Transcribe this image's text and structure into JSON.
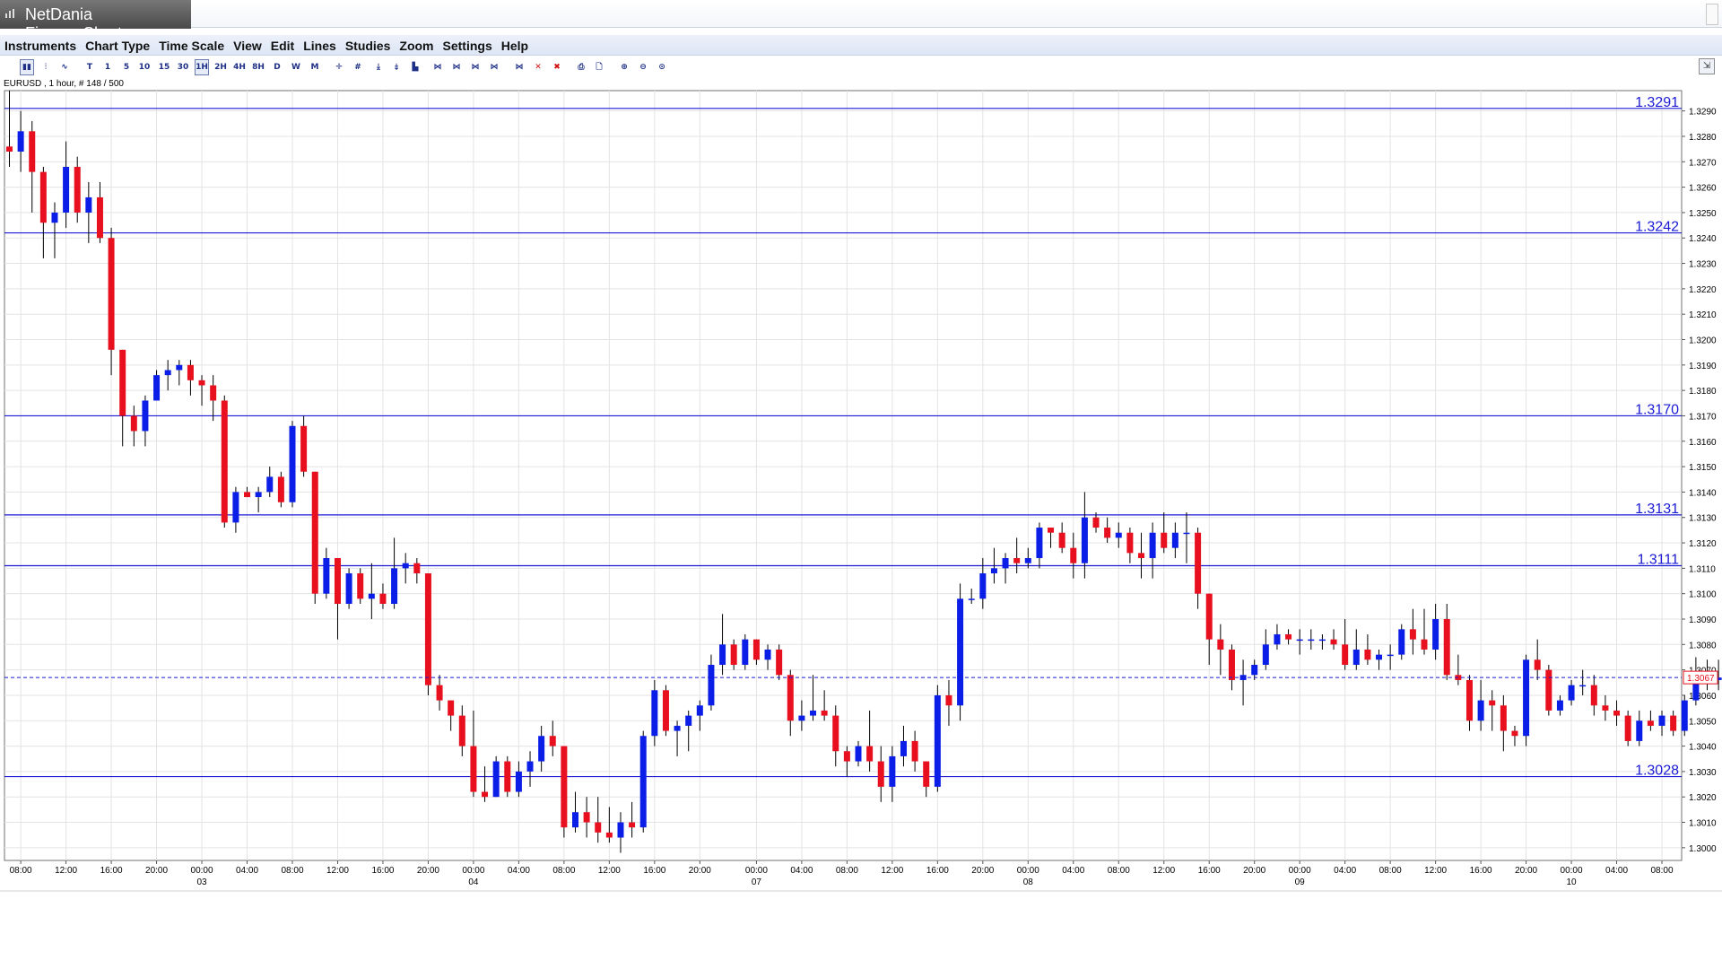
{
  "app": {
    "title": "NetDania FinanceChart"
  },
  "menu": [
    "Instruments",
    "Chart Type",
    "Time Scale",
    "View",
    "Edit",
    "Lines",
    "Studies",
    "Zoom",
    "Settings",
    "Help"
  ],
  "toolbar": {
    "buttons": [
      {
        "name": "chart-candle-icon",
        "label": "▮▮",
        "active": true
      },
      {
        "name": "chart-bar-icon",
        "label": "⫶"
      },
      {
        "name": "chart-line-icon",
        "label": "∿"
      },
      {
        "name": "timescale-tick-button",
        "label": "T"
      },
      {
        "name": "timescale-1-button",
        "label": "1"
      },
      {
        "name": "timescale-5-button",
        "label": "5"
      },
      {
        "name": "timescale-10-button",
        "label": "10"
      },
      {
        "name": "timescale-15-button",
        "label": "15"
      },
      {
        "name": "timescale-30-button",
        "label": "30"
      },
      {
        "name": "timescale-1h-button",
        "label": "1H",
        "active": true
      },
      {
        "name": "timescale-2h-button",
        "label": "2H"
      },
      {
        "name": "timescale-4h-button",
        "label": "4H"
      },
      {
        "name": "timescale-8h-button",
        "label": "8H"
      },
      {
        "name": "timescale-d-button",
        "label": "D"
      },
      {
        "name": "timescale-w-button",
        "label": "W"
      },
      {
        "name": "timescale-m-button",
        "label": "M"
      },
      {
        "name": "crosshair-icon",
        "label": "✛"
      },
      {
        "name": "grid-icon",
        "label": "#"
      },
      {
        "name": "draw-line-icon",
        "label": "⤓"
      },
      {
        "name": "draw-trend-icon",
        "label": "⤈"
      },
      {
        "name": "volume-icon",
        "label": "▙"
      },
      {
        "name": "fib-icon",
        "label": "⋈"
      },
      {
        "name": "fib2-icon",
        "label": "⋈"
      },
      {
        "name": "fib3-icon",
        "label": "⋈"
      },
      {
        "name": "fib4-icon",
        "label": "⋈"
      },
      {
        "name": "edit-line-icon",
        "label": "⋈"
      },
      {
        "name": "delete-icon",
        "label": "✕"
      },
      {
        "name": "delete-all-icon",
        "label": "✖"
      },
      {
        "name": "print-icon",
        "label": "⎙"
      },
      {
        "name": "print-preview-icon",
        "label": "🗋"
      },
      {
        "name": "zoom-in-icon",
        "label": "⊕"
      },
      {
        "name": "zoom-out-icon",
        "label": "⊖"
      },
      {
        "name": "zoom-reset-icon",
        "label": "⊙"
      }
    ],
    "right_label": "⇲"
  },
  "instrument_label": "EURUSD , 1 hour, # 148 / 500",
  "colors": {
    "up": "#0a1ee8",
    "down": "#e8101e",
    "hline": "#1a1ad4",
    "grid": "#e3e3e3"
  },
  "chart_data": {
    "type": "candlestick",
    "ylim": [
      1.2995,
      1.3298
    ],
    "yticks": [
      1.3,
      1.301,
      1.302,
      1.303,
      1.304,
      1.305,
      1.306,
      1.307,
      1.308,
      1.309,
      1.31,
      1.311,
      1.312,
      1.313,
      1.314,
      1.315,
      1.316,
      1.317,
      1.318,
      1.319,
      1.32,
      1.321,
      1.322,
      1.323,
      1.324,
      1.325,
      1.326,
      1.327,
      1.328,
      1.329
    ],
    "ytick_labels": [
      "1.3000",
      "1.3010",
      "1.3020",
      "1.3030",
      "1.3040",
      "1.3050",
      "1.3060",
      "1.3070",
      "1.3080",
      "1.3090",
      "1.3100",
      "1.3110",
      "1.3120",
      "1.3130",
      "1.3140",
      "1.3150",
      "1.3160",
      "1.3170",
      "1.3180",
      "1.3190",
      "1.3200",
      "1.3210",
      "1.3220",
      "1.3230",
      "1.3240",
      "1.3250",
      "1.3260",
      "1.3270",
      "1.3280",
      "1.3290"
    ],
    "hlines": [
      {
        "value": 1.3291,
        "label": "1.3291"
      },
      {
        "value": 1.3242,
        "label": "1.3242"
      },
      {
        "value": 1.317,
        "label": "1.3170"
      },
      {
        "value": 1.3131,
        "label": "1.3131"
      },
      {
        "value": 1.3111,
        "label": "1.3111"
      },
      {
        "value": 1.3028,
        "label": "1.3028"
      }
    ],
    "last_price": {
      "value": 1.3067,
      "label": "1.3067"
    },
    "xticks": [
      {
        "i": 1,
        "label": "08:00"
      },
      {
        "i": 5,
        "label": "12:00"
      },
      {
        "i": 9,
        "label": "16:00"
      },
      {
        "i": 13,
        "label": "20:00"
      },
      {
        "i": 17,
        "label": "00:00",
        "date": "03"
      },
      {
        "i": 21,
        "label": "04:00"
      },
      {
        "i": 25,
        "label": "08:00"
      },
      {
        "i": 29,
        "label": "12:00"
      },
      {
        "i": 33,
        "label": "16:00"
      },
      {
        "i": 37,
        "label": "20:00"
      },
      {
        "i": 41,
        "label": "00:00",
        "date": "04"
      },
      {
        "i": 45,
        "label": "04:00"
      },
      {
        "i": 49,
        "label": "08:00"
      },
      {
        "i": 53,
        "label": "12:00"
      },
      {
        "i": 57,
        "label": "16:00"
      },
      {
        "i": 61,
        "label": "20:00"
      },
      {
        "i": 66,
        "label": "00:00",
        "date": "07"
      },
      {
        "i": 70,
        "label": "04:00"
      },
      {
        "i": 74,
        "label": "08:00"
      },
      {
        "i": 78,
        "label": "12:00"
      },
      {
        "i": 82,
        "label": "16:00"
      },
      {
        "i": 86,
        "label": "20:00"
      },
      {
        "i": 90,
        "label": "00:00",
        "date": "08"
      },
      {
        "i": 94,
        "label": "04:00"
      },
      {
        "i": 98,
        "label": "08:00"
      },
      {
        "i": 102,
        "label": "12:00"
      },
      {
        "i": 106,
        "label": "16:00"
      },
      {
        "i": 110,
        "label": "20:00"
      },
      {
        "i": 114,
        "label": "00:00",
        "date": "09"
      },
      {
        "i": 118,
        "label": "04:00"
      },
      {
        "i": 122,
        "label": "08:00"
      },
      {
        "i": 126,
        "label": "12:00"
      },
      {
        "i": 130,
        "label": "16:00"
      },
      {
        "i": 134,
        "label": "20:00"
      },
      {
        "i": 138,
        "label": "00:00",
        "date": "10"
      },
      {
        "i": 142,
        "label": "04:00"
      },
      {
        "i": 146,
        "label": "08:00"
      }
    ],
    "candles": [
      [
        1.3276,
        1.3298,
        1.3268,
        1.3274
      ],
      [
        1.3274,
        1.329,
        1.3266,
        1.3282
      ],
      [
        1.3282,
        1.3286,
        1.325,
        1.3266
      ],
      [
        1.3266,
        1.3268,
        1.3232,
        1.3246
      ],
      [
        1.3246,
        1.3254,
        1.3232,
        1.325
      ],
      [
        1.325,
        1.3278,
        1.3244,
        1.3268
      ],
      [
        1.3268,
        1.3272,
        1.3246,
        1.325
      ],
      [
        1.325,
        1.3262,
        1.3238,
        1.3256
      ],
      [
        1.3256,
        1.3262,
        1.3238,
        1.324
      ],
      [
        1.324,
        1.3244,
        1.3186,
        1.3196
      ],
      [
        1.3196,
        1.3196,
        1.3158,
        1.317
      ],
      [
        1.317,
        1.3174,
        1.3158,
        1.3164
      ],
      [
        1.3164,
        1.3178,
        1.3158,
        1.3176
      ],
      [
        1.3176,
        1.3188,
        1.3176,
        1.3186
      ],
      [
        1.3186,
        1.3192,
        1.318,
        1.3188
      ],
      [
        1.3188,
        1.3192,
        1.3182,
        1.319
      ],
      [
        1.319,
        1.3192,
        1.3178,
        1.3184
      ],
      [
        1.3184,
        1.3186,
        1.3174,
        1.3182
      ],
      [
        1.3182,
        1.3186,
        1.3168,
        1.3176
      ],
      [
        1.3176,
        1.3178,
        1.3126,
        1.3128
      ],
      [
        1.3128,
        1.3142,
        1.3124,
        1.314
      ],
      [
        1.314,
        1.3142,
        1.3138,
        1.3138
      ],
      [
        1.3138,
        1.3142,
        1.3132,
        1.314
      ],
      [
        1.314,
        1.315,
        1.3138,
        1.3146
      ],
      [
        1.3146,
        1.3148,
        1.3134,
        1.3136
      ],
      [
        1.3136,
        1.3168,
        1.3134,
        1.3166
      ],
      [
        1.3166,
        1.317,
        1.3146,
        1.3148
      ],
      [
        1.3148,
        1.3148,
        1.3096,
        1.31
      ],
      [
        1.31,
        1.3118,
        1.3098,
        1.3114
      ],
      [
        1.3114,
        1.3114,
        1.3082,
        1.3096
      ],
      [
        1.3096,
        1.311,
        1.3094,
        1.3108
      ],
      [
        1.3108,
        1.311,
        1.3096,
        1.3098
      ],
      [
        1.3098,
        1.3112,
        1.309,
        1.31
      ],
      [
        1.31,
        1.3104,
        1.3094,
        1.3096
      ],
      [
        1.3096,
        1.3122,
        1.3094,
        1.311
      ],
      [
        1.311,
        1.3116,
        1.3104,
        1.3112
      ],
      [
        1.3112,
        1.3114,
        1.3104,
        1.3108
      ],
      [
        1.3108,
        1.3108,
        1.306,
        1.3064
      ],
      [
        1.3064,
        1.3068,
        1.3054,
        1.3058
      ],
      [
        1.3058,
        1.3058,
        1.3046,
        1.3052
      ],
      [
        1.3052,
        1.3056,
        1.3036,
        1.304
      ],
      [
        1.304,
        1.3054,
        1.302,
        1.3022
      ],
      [
        1.3022,
        1.3032,
        1.3018,
        1.302
      ],
      [
        1.302,
        1.3036,
        1.302,
        1.3034
      ],
      [
        1.3034,
        1.3036,
        1.302,
        1.3022
      ],
      [
        1.3022,
        1.3034,
        1.302,
        1.303
      ],
      [
        1.303,
        1.3038,
        1.3024,
        1.3034
      ],
      [
        1.3034,
        1.3048,
        1.303,
        1.3044
      ],
      [
        1.3044,
        1.305,
        1.3036,
        1.304
      ],
      [
        1.304,
        1.304,
        1.3004,
        1.3008
      ],
      [
        1.3008,
        1.3022,
        1.3006,
        1.3014
      ],
      [
        1.3014,
        1.302,
        1.3004,
        1.301
      ],
      [
        1.301,
        1.302,
        1.3002,
        1.3006
      ],
      [
        1.3006,
        1.3016,
        1.3002,
        1.3004
      ],
      [
        1.3004,
        1.3014,
        1.2998,
        1.301
      ],
      [
        1.301,
        1.3018,
        1.3004,
        1.3008
      ],
      [
        1.3008,
        1.3046,
        1.3006,
        1.3044
      ],
      [
        1.3044,
        1.3066,
        1.304,
        1.3062
      ],
      [
        1.3062,
        1.3064,
        1.3044,
        1.3046
      ],
      [
        1.3046,
        1.305,
        1.3036,
        1.3048
      ],
      [
        1.3048,
        1.3054,
        1.3038,
        1.3052
      ],
      [
        1.3052,
        1.3058,
        1.3046,
        1.3056
      ],
      [
        1.3056,
        1.3076,
        1.3054,
        1.3072
      ],
      [
        1.3072,
        1.3092,
        1.3068,
        1.308
      ],
      [
        1.308,
        1.3082,
        1.307,
        1.3072
      ],
      [
        1.3072,
        1.3084,
        1.307,
        1.3082
      ],
      [
        1.3082,
        1.3082,
        1.3072,
        1.3074
      ],
      [
        1.3074,
        1.308,
        1.307,
        1.3078
      ],
      [
        1.3078,
        1.308,
        1.3066,
        1.3068
      ],
      [
        1.3068,
        1.307,
        1.3044,
        1.305
      ],
      [
        1.305,
        1.3058,
        1.3046,
        1.3052
      ],
      [
        1.3052,
        1.3068,
        1.305,
        1.3054
      ],
      [
        1.3054,
        1.3062,
        1.305,
        1.3052
      ],
      [
        1.3052,
        1.3056,
        1.3032,
        1.3038
      ],
      [
        1.3038,
        1.304,
        1.3028,
        1.3034
      ],
      [
        1.3034,
        1.3042,
        1.3032,
        1.304
      ],
      [
        1.304,
        1.3054,
        1.303,
        1.3034
      ],
      [
        1.3034,
        1.304,
        1.3018,
        1.3024
      ],
      [
        1.3024,
        1.304,
        1.3018,
        1.3036
      ],
      [
        1.3036,
        1.3048,
        1.3032,
        1.3042
      ],
      [
        1.3042,
        1.3046,
        1.303,
        1.3034
      ],
      [
        1.3034,
        1.3034,
        1.302,
        1.3024
      ],
      [
        1.3024,
        1.3064,
        1.3022,
        1.306
      ],
      [
        1.306,
        1.3066,
        1.3048,
        1.3056
      ],
      [
        1.3056,
        1.3104,
        1.305,
        1.3098
      ],
      [
        1.3098,
        1.3102,
        1.3096,
        1.3098
      ],
      [
        1.3098,
        1.3114,
        1.3094,
        1.3108
      ],
      [
        1.3108,
        1.3118,
        1.3104,
        1.311
      ],
      [
        1.311,
        1.3116,
        1.3104,
        1.3114
      ],
      [
        1.3114,
        1.3122,
        1.3108,
        1.3112
      ],
      [
        1.3112,
        1.3118,
        1.311,
        1.3114
      ],
      [
        1.3114,
        1.3128,
        1.311,
        1.3126
      ],
      [
        1.3126,
        1.3126,
        1.3118,
        1.3124
      ],
      [
        1.3124,
        1.3128,
        1.3116,
        1.3118
      ],
      [
        1.3118,
        1.3124,
        1.3106,
        1.3112
      ],
      [
        1.3112,
        1.314,
        1.3106,
        1.313
      ],
      [
        1.313,
        1.3132,
        1.3124,
        1.3126
      ],
      [
        1.3126,
        1.313,
        1.312,
        1.3122
      ],
      [
        1.3122,
        1.3128,
        1.3118,
        1.3124
      ],
      [
        1.3124,
        1.3126,
        1.3112,
        1.3116
      ],
      [
        1.3116,
        1.3124,
        1.3106,
        1.3114
      ],
      [
        1.3114,
        1.3128,
        1.3106,
        1.3124
      ],
      [
        1.3124,
        1.3132,
        1.3116,
        1.3118
      ],
      [
        1.3118,
        1.3128,
        1.3114,
        1.3124
      ],
      [
        1.3124,
        1.3132,
        1.3112,
        1.3124
      ],
      [
        1.3124,
        1.3126,
        1.3094,
        1.31
      ],
      [
        1.31,
        1.31,
        1.3072,
        1.3082
      ],
      [
        1.3082,
        1.3088,
        1.3068,
        1.3078
      ],
      [
        1.3078,
        1.308,
        1.3062,
        1.3066
      ],
      [
        1.3066,
        1.3074,
        1.3056,
        1.3068
      ],
      [
        1.3068,
        1.3074,
        1.3066,
        1.3072
      ],
      [
        1.3072,
        1.3086,
        1.307,
        1.308
      ],
      [
        1.308,
        1.3088,
        1.3078,
        1.3084
      ],
      [
        1.3084,
        1.3086,
        1.308,
        1.3082
      ],
      [
        1.3082,
        1.3086,
        1.3076,
        1.3082
      ],
      [
        1.3082,
        1.3086,
        1.3078,
        1.3082
      ],
      [
        1.3082,
        1.3084,
        1.3078,
        1.3082
      ],
      [
        1.3082,
        1.3086,
        1.3078,
        1.308
      ],
      [
        1.308,
        1.309,
        1.307,
        1.3072
      ],
      [
        1.3072,
        1.3086,
        1.307,
        1.3078
      ],
      [
        1.3078,
        1.3084,
        1.3072,
        1.3074
      ],
      [
        1.3074,
        1.3078,
        1.307,
        1.3076
      ],
      [
        1.3076,
        1.308,
        1.307,
        1.3076
      ],
      [
        1.3076,
        1.3088,
        1.3074,
        1.3086
      ],
      [
        1.3086,
        1.3094,
        1.3076,
        1.3082
      ],
      [
        1.3082,
        1.3094,
        1.3076,
        1.3078
      ],
      [
        1.3078,
        1.3096,
        1.3074,
        1.309
      ],
      [
        1.309,
        1.3096,
        1.3066,
        1.3068
      ],
      [
        1.3068,
        1.3076,
        1.3064,
        1.3066
      ],
      [
        1.3066,
        1.3068,
        1.3046,
        1.305
      ],
      [
        1.305,
        1.3066,
        1.3046,
        1.3058
      ],
      [
        1.3058,
        1.3062,
        1.3046,
        1.3056
      ],
      [
        1.3056,
        1.306,
        1.3038,
        1.3046
      ],
      [
        1.3046,
        1.3048,
        1.304,
        1.3044
      ],
      [
        1.3044,
        1.3076,
        1.304,
        1.3074
      ],
      [
        1.3074,
        1.3082,
        1.3066,
        1.307
      ],
      [
        1.307,
        1.3072,
        1.3052,
        1.3054
      ],
      [
        1.3054,
        1.306,
        1.3052,
        1.3058
      ],
      [
        1.3058,
        1.3066,
        1.3056,
        1.3064
      ],
      [
        1.3064,
        1.307,
        1.306,
        1.3064
      ],
      [
        1.3064,
        1.3068,
        1.3052,
        1.3056
      ],
      [
        1.3056,
        1.306,
        1.305,
        1.3054
      ],
      [
        1.3054,
        1.3058,
        1.3048,
        1.3052
      ],
      [
        1.3052,
        1.3054,
        1.304,
        1.3042
      ],
      [
        1.3042,
        1.3054,
        1.304,
        1.305
      ],
      [
        1.305,
        1.3054,
        1.3046,
        1.3048
      ],
      [
        1.3048,
        1.3054,
        1.3044,
        1.3052
      ],
      [
        1.3052,
        1.3054,
        1.3044,
        1.3046
      ],
      [
        1.3046,
        1.306,
        1.3044,
        1.3058
      ],
      [
        1.3058,
        1.3075,
        1.3056,
        1.3068
      ],
      [
        1.3068,
        1.3074,
        1.3062,
        1.3066
      ],
      [
        1.3066,
        1.3074,
        1.3062,
        1.3067
      ]
    ]
  }
}
